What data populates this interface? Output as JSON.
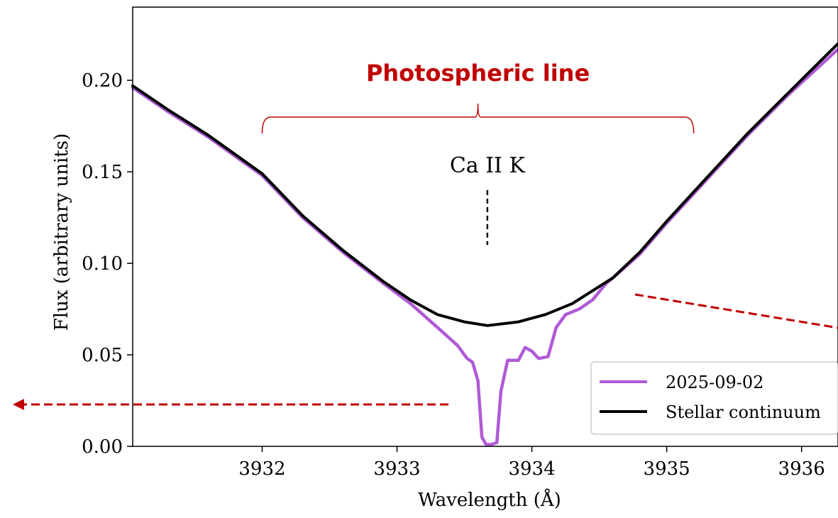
{
  "colors": {
    "observation": "#b05ad6",
    "continuum": "#000000",
    "annotation": "#c00000"
  },
  "chart_data": {
    "type": "line",
    "xlabel": "Wavelength (Å)",
    "ylabel": "Flux (arbitrary units)",
    "xlim": [
      3931.04,
      3936.27
    ],
    "ylim": [
      0.0,
      0.24
    ],
    "xticks": [
      3932,
      3933,
      3934,
      3935,
      3936
    ],
    "yticks": [
      0.0,
      0.05,
      0.1,
      0.15,
      0.2
    ],
    "ytick_labels": [
      "0.00",
      "0.05",
      "0.10",
      "0.15",
      "0.20"
    ],
    "grid": false,
    "legend_position": "lower-right",
    "series": [
      {
        "name": "2025-09-02",
        "color": "#b05ad6",
        "x": [
          3931.04,
          3931.3,
          3931.6,
          3932.0,
          3932.3,
          3932.6,
          3932.9,
          3933.1,
          3933.3,
          3933.45,
          3933.52,
          3933.56,
          3933.6,
          3933.63,
          3933.66,
          3933.7,
          3933.74,
          3933.77,
          3933.82,
          3933.9,
          3933.95,
          3934.0,
          3934.05,
          3934.12,
          3934.18,
          3934.25,
          3934.35,
          3934.45,
          3934.55,
          3934.6,
          3934.8,
          3935.0,
          3935.3,
          3935.6,
          3935.9,
          3936.27
        ],
        "y": [
          0.196,
          0.183,
          0.169,
          0.148,
          0.125,
          0.106,
          0.089,
          0.078,
          0.065,
          0.055,
          0.048,
          0.046,
          0.036,
          0.005,
          0.001,
          0.001,
          0.002,
          0.03,
          0.047,
          0.047,
          0.054,
          0.052,
          0.048,
          0.049,
          0.065,
          0.072,
          0.075,
          0.08,
          0.089,
          0.092,
          0.105,
          0.122,
          0.146,
          0.17,
          0.192,
          0.217
        ]
      },
      {
        "name": "Stellar continuum",
        "color": "#000000",
        "x": [
          3931.04,
          3931.3,
          3931.6,
          3932.0,
          3932.3,
          3932.6,
          3932.9,
          3933.1,
          3933.3,
          3933.5,
          3933.67,
          3933.9,
          3934.1,
          3934.3,
          3934.6,
          3934.8,
          3935.0,
          3935.3,
          3935.6,
          3935.9,
          3936.27
        ],
        "y": [
          0.197,
          0.184,
          0.17,
          0.149,
          0.126,
          0.107,
          0.09,
          0.08,
          0.072,
          0.068,
          0.066,
          0.068,
          0.072,
          0.078,
          0.092,
          0.106,
          0.123,
          0.147,
          0.171,
          0.193,
          0.22
        ]
      }
    ],
    "annotations": {
      "line_name": "Ca II K",
      "line_center": 3933.67,
      "line_marker_y_range": [
        0.11,
        0.14
      ],
      "bracket_label": "Photospheric line",
      "bracket_x_range": [
        3932.0,
        3935.2
      ]
    }
  }
}
